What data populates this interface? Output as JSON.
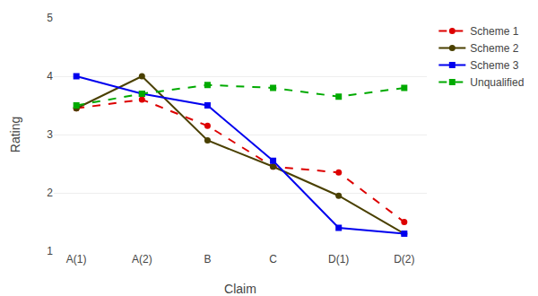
{
  "chart_data": {
    "type": "line",
    "categories": [
      "A(1)",
      "A(2)",
      "B",
      "C",
      "D(1)",
      "D(2)"
    ],
    "series": [
      {
        "name": "Scheme 1",
        "color": "#dd0000",
        "marker": "circle",
        "line_style": "dashed",
        "values": [
          3.45,
          3.6,
          3.15,
          2.45,
          2.35,
          1.5
        ]
      },
      {
        "name": "Scheme 2",
        "color": "#4a4000",
        "marker": "circle",
        "line_style": "solid",
        "values": [
          3.45,
          4.0,
          2.9,
          2.45,
          1.95,
          1.3
        ]
      },
      {
        "name": "Scheme 3",
        "color": "#0000ee",
        "marker": "square",
        "line_style": "solid",
        "values": [
          4.0,
          3.7,
          3.5,
          2.55,
          1.4,
          1.3
        ]
      },
      {
        "name": "Unqualified",
        "color": "#00aa00",
        "marker": "square",
        "line_style": "dashed",
        "values": [
          3.5,
          3.7,
          3.85,
          3.8,
          3.65,
          3.8
        ]
      }
    ],
    "xlabel": "Claim",
    "ylabel": "Rating",
    "ylim": [
      1,
      5
    ],
    "yticks": [
      1,
      2,
      3,
      4,
      5
    ],
    "grid": true,
    "legend": "upper right"
  }
}
